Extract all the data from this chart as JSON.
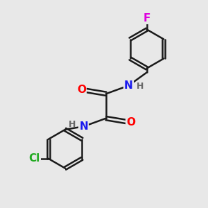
{
  "background_color": "#e8e8e8",
  "bond_color": "#1a1a1a",
  "bond_width": 1.8,
  "atom_colors": {
    "O": "#ff0000",
    "N": "#1a1aee",
    "Cl": "#22aa22",
    "F": "#dd00dd",
    "C": "#1a1a1a",
    "H": "#666666"
  },
  "font_size_atoms": 11,
  "font_size_h": 9,
  "fig_w": 3.0,
  "fig_h": 3.0,
  "dpi": 100,
  "xlim": [
    0,
    10
  ],
  "ylim": [
    0,
    10
  ]
}
